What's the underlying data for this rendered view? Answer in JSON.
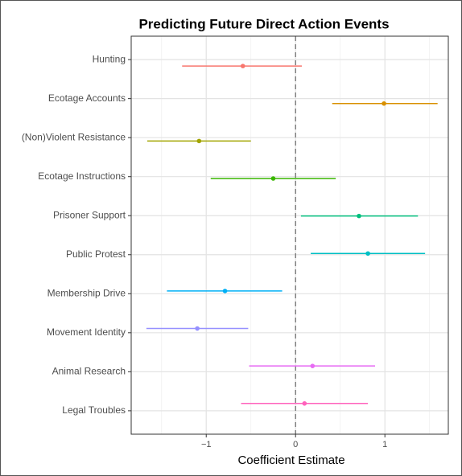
{
  "chart_data": {
    "type": "coefplot",
    "title": "Predicting Future Direct Action Events",
    "x_label": "Coefficient Estimate",
    "categories": [
      "Hunting",
      "Ecotage Accounts",
      "(Non)Violent Resistance",
      "Ecotage Instructions",
      "Prisoner Support",
      "Public Protest",
      "Membership Drive",
      "Movement Identity",
      "Animal Research",
      "Legal Troubles"
    ],
    "estimates": [
      -0.59,
      0.99,
      -1.08,
      -0.25,
      0.71,
      0.81,
      -0.79,
      -1.1,
      0.19,
      0.1
    ],
    "lower": [
      -1.27,
      0.41,
      -1.66,
      -0.95,
      0.06,
      0.17,
      -1.44,
      -1.67,
      -0.52,
      -0.61
    ],
    "upper": [
      0.07,
      1.59,
      -0.5,
      0.45,
      1.37,
      1.45,
      -0.15,
      -0.53,
      0.89,
      0.81
    ],
    "colors": [
      "#F8766D",
      "#D89000",
      "#A3A500",
      "#39B600",
      "#00BF7D",
      "#00BFC4",
      "#00B0F6",
      "#9590FF",
      "#E76BF3",
      "#FF62BC"
    ],
    "xlim": [
      -1.84,
      1.71
    ],
    "xticks": [
      {
        "value": -1,
        "label": "−1"
      },
      0,
      1
    ],
    "minor_xticks": [
      -1.5,
      -0.5,
      0.5,
      1.5
    ],
    "reference_line": 0,
    "grid": true
  }
}
